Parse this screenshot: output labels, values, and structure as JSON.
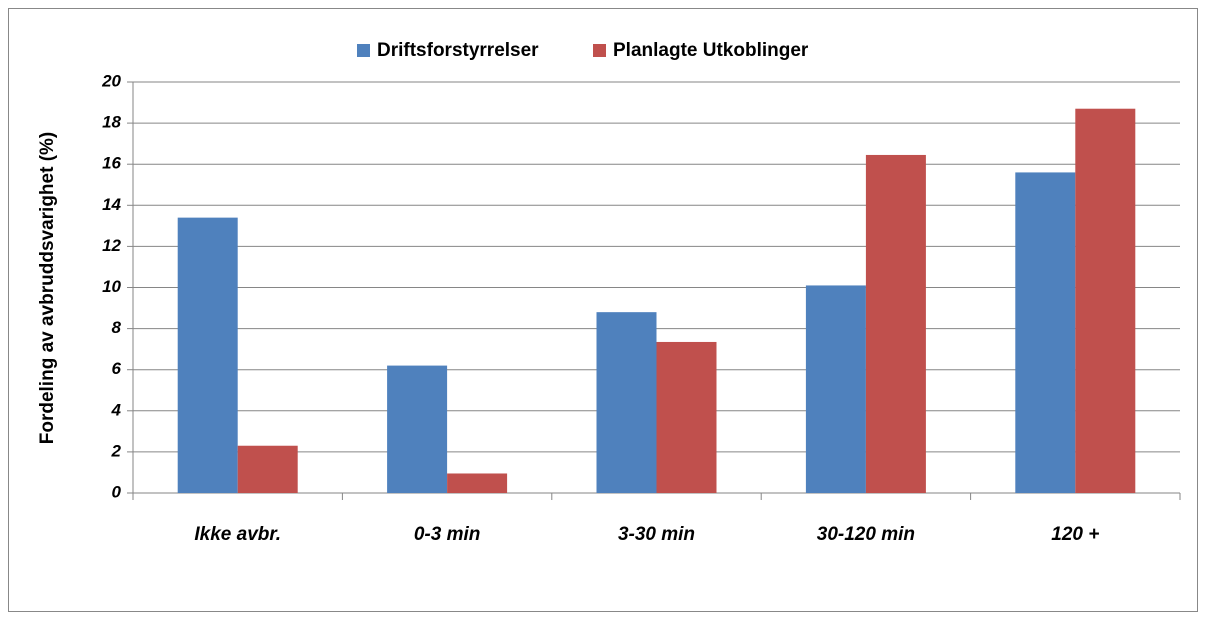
{
  "chart_data": {
    "type": "bar",
    "ylabel": "Fordeling av avbruddsvarighet (%)",
    "categories": [
      "Ikke avbr.",
      "0-3 min",
      "3-30 min",
      "30-120 min",
      "120 +"
    ],
    "series": [
      {
        "name": "Driftsforstyrrelser",
        "color": "#4f81bd",
        "values": [
          13.4,
          6.2,
          8.8,
          10.1,
          15.6
        ]
      },
      {
        "name": "Planlagte Utkoblinger",
        "color": "#c0504d",
        "values": [
          2.3,
          0.95,
          7.35,
          16.45,
          18.7
        ]
      }
    ],
    "ylim": [
      0,
      20
    ],
    "yticks": [
      0,
      2,
      4,
      6,
      8,
      10,
      12,
      14,
      16,
      18,
      20
    ],
    "grid": true
  }
}
